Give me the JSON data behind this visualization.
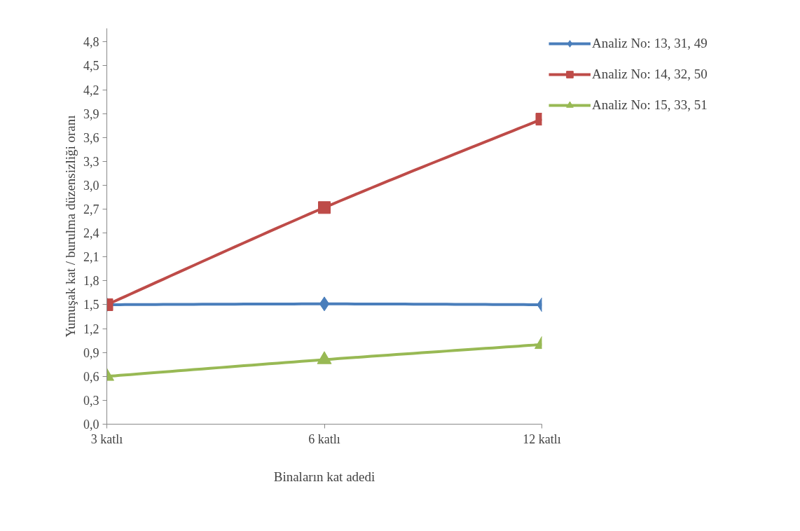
{
  "chart_data": {
    "type": "line",
    "xlabel": "Binaların kat adedi",
    "ylabel": "Yumuşak kat / burulma düzensizliği oranı",
    "categories": [
      "3 katlı",
      "6 katlı",
      "12 katlı"
    ],
    "series": [
      {
        "name": "Analiz No: 13, 31, 49",
        "color": "#4a7ebb",
        "marker": "diamond",
        "values": [
          1.5,
          1.51,
          1.5
        ]
      },
      {
        "name": "Analiz No: 14, 32, 50",
        "color": "#be4b48",
        "marker": "square",
        "values": [
          1.5,
          2.72,
          3.83
        ]
      },
      {
        "name": "Analiz No: 15, 33, 51",
        "color": "#98b954",
        "marker": "triangle",
        "values": [
          0.6,
          0.81,
          1.0
        ]
      }
    ],
    "ylim": [
      0,
      4.97
    ],
    "yticks": [
      {
        "value": 0,
        "label": "0,0"
      },
      {
        "value": 0.3,
        "label": "0,3"
      },
      {
        "value": 0.6,
        "label": "0,6"
      },
      {
        "value": 0.9,
        "label": "0,9"
      },
      {
        "value": 1.2,
        "label": "1,2"
      },
      {
        "value": 1.5,
        "label": "1,5"
      },
      {
        "value": 1.8,
        "label": "1,8"
      },
      {
        "value": 2.1,
        "label": "2,1"
      },
      {
        "value": 2.4,
        "label": "2,4"
      },
      {
        "value": 2.7,
        "label": "2,7"
      },
      {
        "value": 3.0,
        "label": "3,0"
      },
      {
        "value": 3.3,
        "label": "3,3"
      },
      {
        "value": 3.6,
        "label": "3,6"
      },
      {
        "value": 3.9,
        "label": "3,9"
      },
      {
        "value": 4.2,
        "label": "4,2"
      },
      {
        "value": 4.5,
        "label": "4,5"
      },
      {
        "value": 4.8,
        "label": "4,8"
      }
    ],
    "grid": false,
    "legend": "top right",
    "line_style": "solid"
  }
}
